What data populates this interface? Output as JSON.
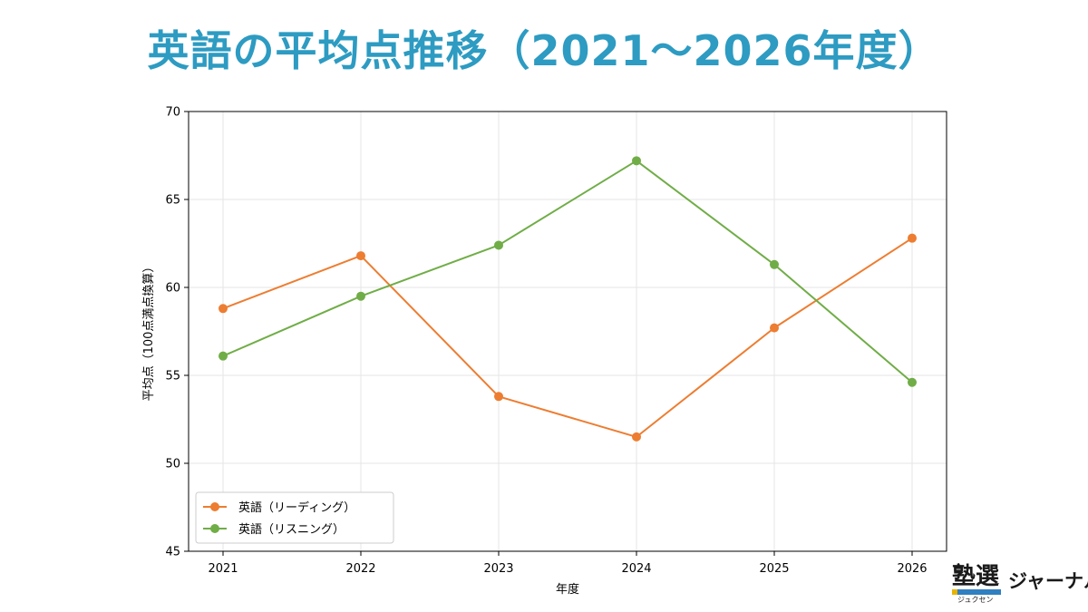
{
  "page": {
    "title": "英語の平均点推移（2021〜2026年度）"
  },
  "colors": {
    "title": "#2d9bc2",
    "reading": "#ed7d31",
    "listening": "#70ad47"
  },
  "chart_data": {
    "type": "line",
    "title": "",
    "xlabel": "年度",
    "ylabel": "平均点（100点満点換算）",
    "categories": [
      "2021",
      "2022",
      "2023",
      "2024",
      "2025",
      "2026"
    ],
    "ylim": [
      45,
      70
    ],
    "yticks": [
      "45",
      "50",
      "55",
      "60",
      "65",
      "70"
    ],
    "grid": true,
    "legend_position": "lower-left",
    "series": [
      {
        "name": "英語（リーディング）",
        "color": "#ed7d31",
        "values": [
          58.8,
          61.8,
          53.8,
          51.5,
          57.7,
          62.8
        ]
      },
      {
        "name": "英語（リスニング）",
        "color": "#70ad47",
        "values": [
          56.1,
          59.5,
          62.4,
          67.2,
          61.3,
          54.6
        ]
      }
    ]
  },
  "brand": {
    "mark": "塾選",
    "kana": "ジュクセン",
    "name": "ジャーナル"
  }
}
